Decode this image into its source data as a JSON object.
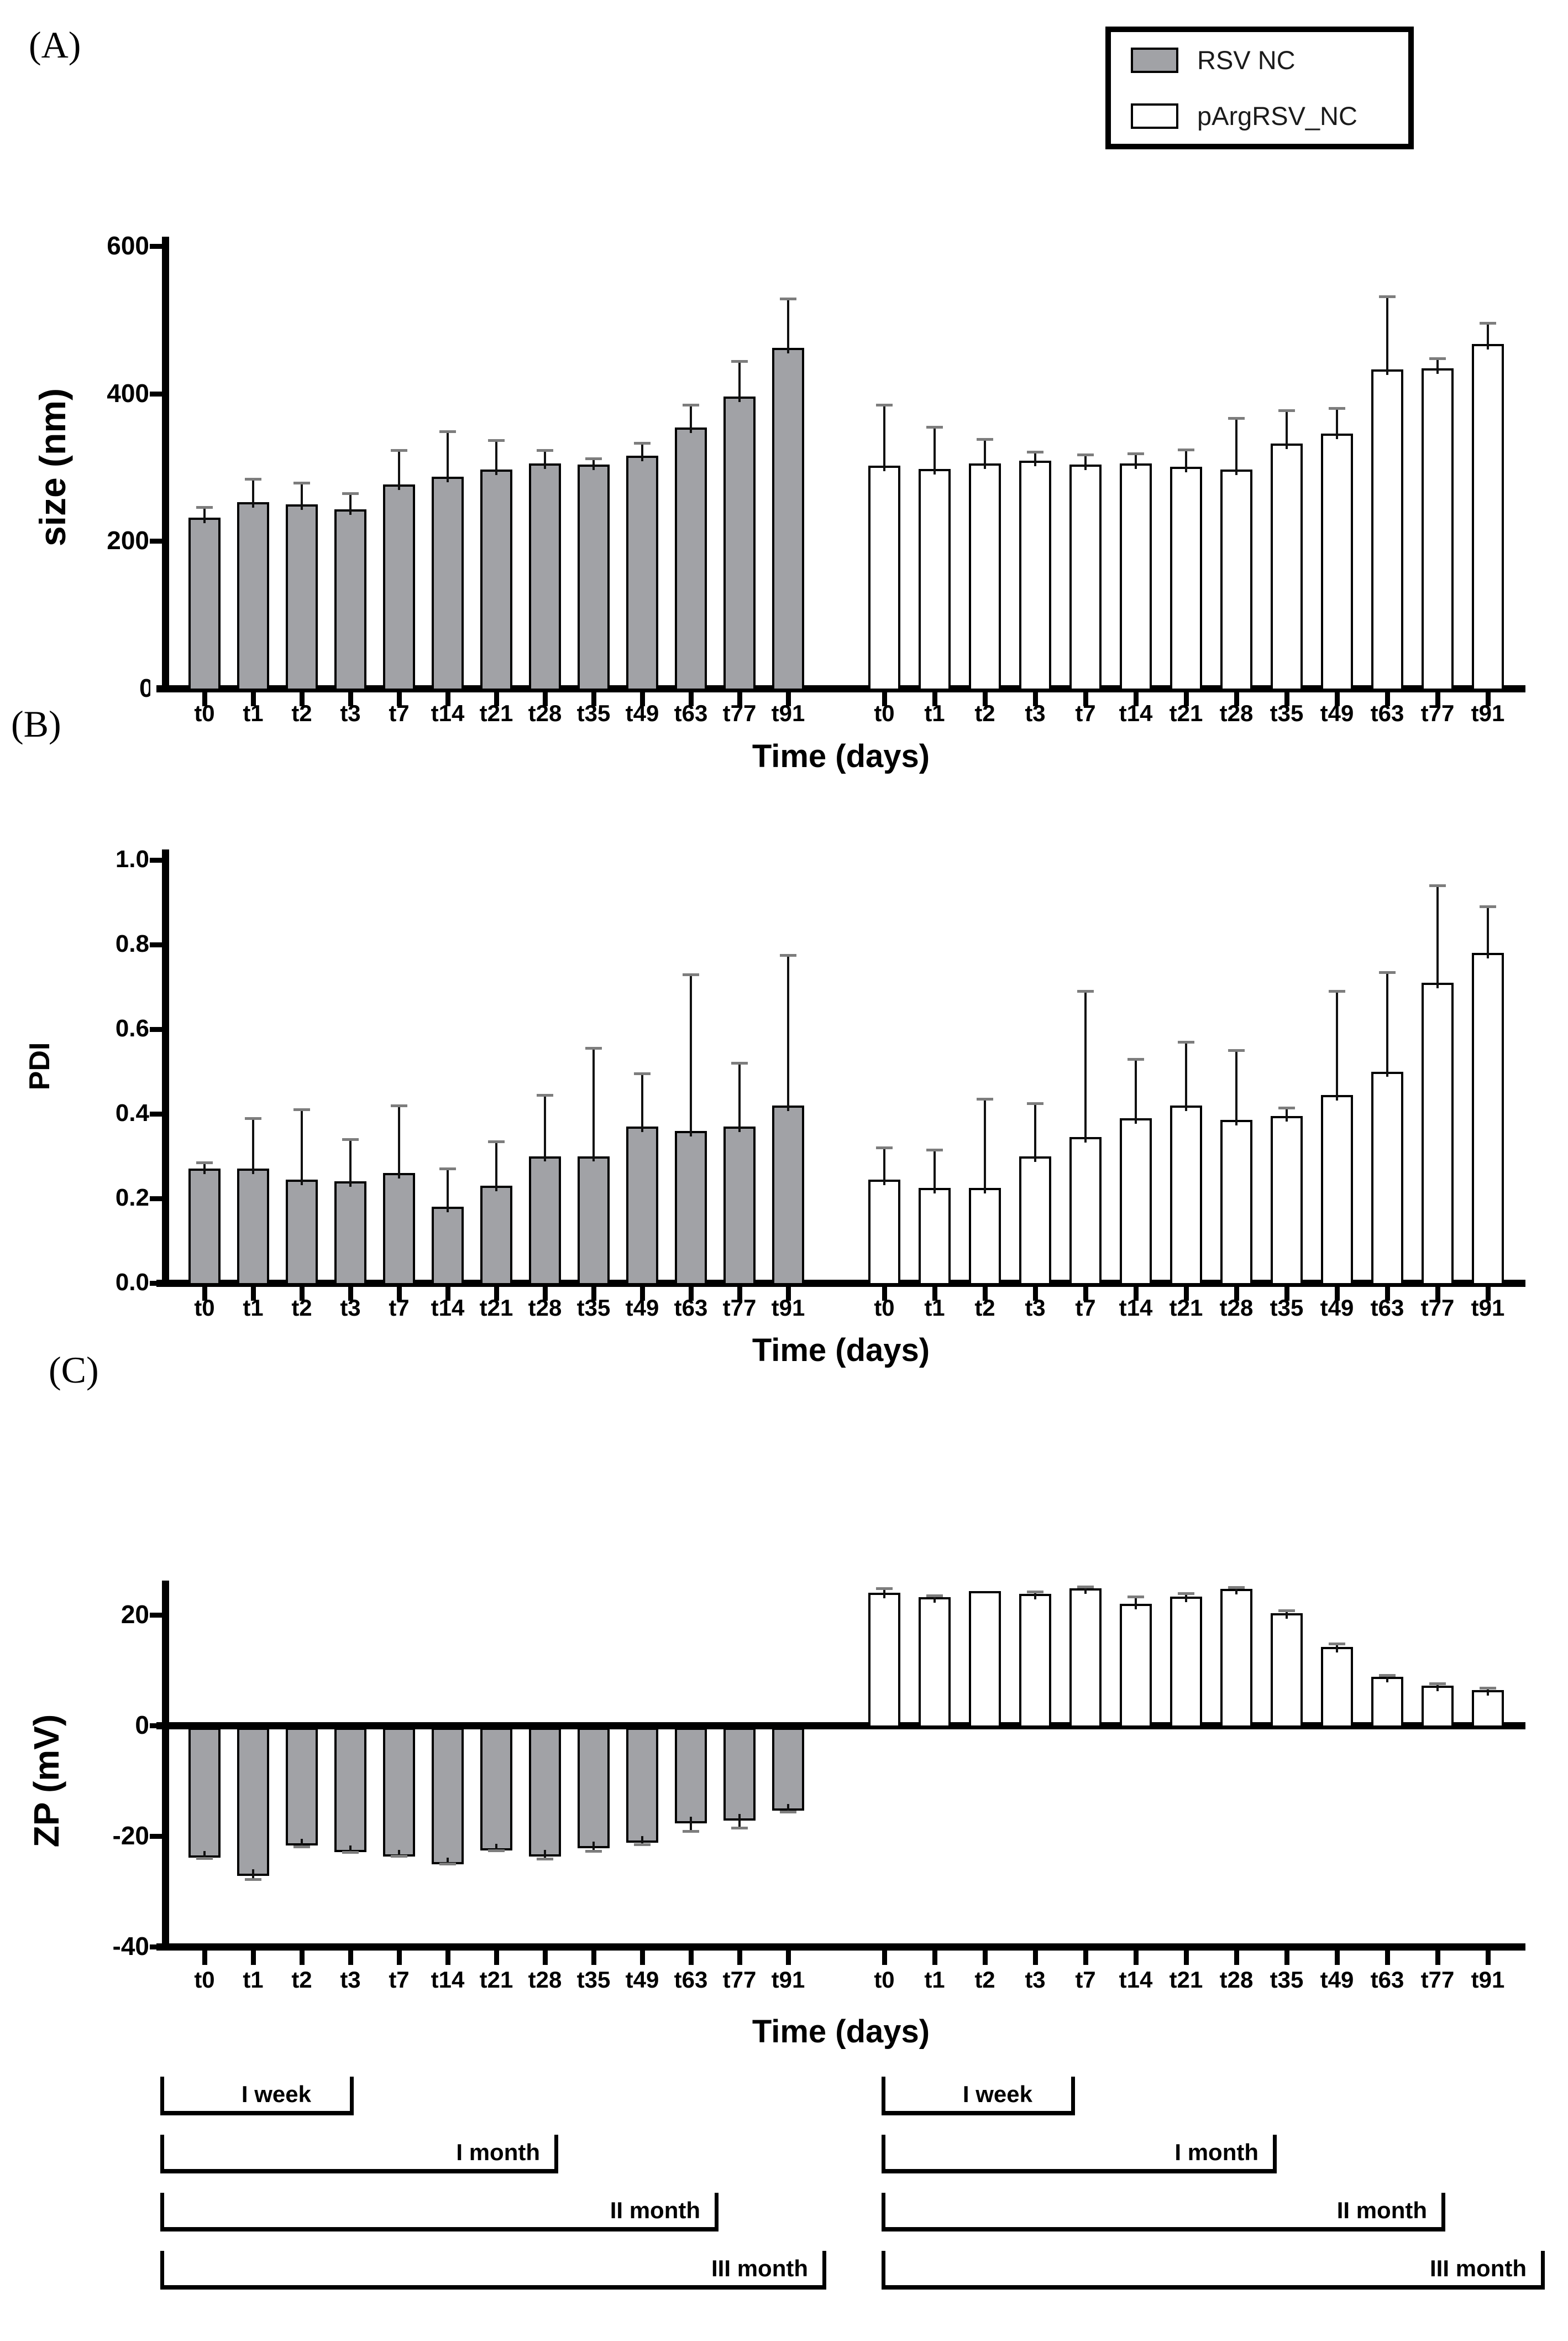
{
  "figure": {
    "panels": [
      {
        "id": "A",
        "label": "(A)"
      },
      {
        "id": "B",
        "label": "(B)"
      },
      {
        "id": "C",
        "label": "(C)"
      }
    ]
  },
  "legend": {
    "items": [
      {
        "label": "RSV NC",
        "fill": "#a1a2a6"
      },
      {
        "label": "pArgRSV_NC",
        "fill": "#ffffff"
      }
    ]
  },
  "colors": {
    "bar_gray": "#a1a2a6",
    "bar_white": "#ffffff",
    "axis": "#000000",
    "error_stem": "#111111",
    "error_cap": "#7d7d7d"
  },
  "brackets": {
    "labels": [
      "I week",
      "I month",
      "II month",
      "III month"
    ]
  },
  "chart_data": [
    {
      "type": "bar",
      "panel": "A",
      "title": "",
      "ylabel": "size (nm)",
      "xlabel": "Time (days)",
      "ylim": [
        0,
        600
      ],
      "ytick_values": [
        600,
        400,
        200,
        0
      ],
      "ytick_labels": [
        "600",
        "400",
        "200",
        "0"
      ],
      "grid": false,
      "legend_position": "top-right",
      "categories": [
        "t0",
        "t1",
        "t2",
        "t3",
        "t7",
        "t14",
        "t21",
        "t28",
        "t35",
        "t49",
        "t63",
        "t77",
        "t91"
      ],
      "series": [
        {
          "name": "RSV NC",
          "values": [
            232,
            253,
            250,
            243,
            277,
            287,
            297,
            305,
            304,
            316,
            354,
            396,
            462
          ],
          "errors": [
            14,
            31,
            29,
            22,
            46,
            62,
            40,
            18,
            8,
            17,
            31,
            48,
            67
          ]
        },
        {
          "name": "pArgRSV_NC",
          "values": [
            302,
            298,
            305,
            309,
            304,
            305,
            301,
            297,
            332,
            346,
            433,
            434,
            467
          ],
          "errors": [
            83,
            57,
            33,
            12,
            13,
            14,
            23,
            70,
            45,
            34,
            99,
            14,
            29
          ]
        }
      ]
    },
    {
      "type": "bar",
      "panel": "B",
      "title": "",
      "ylabel": "PDI",
      "xlabel": "Time (days)",
      "ylim": [
        0,
        1.0
      ],
      "ytick_values": [
        1.0,
        0.8,
        0.6,
        0.4,
        0.2,
        0.0
      ],
      "ytick_labels": [
        "1.0",
        "0.8",
        "0.6",
        "0.4",
        "0.2",
        "0.0"
      ],
      "grid": false,
      "categories": [
        "t0",
        "t1",
        "t2",
        "t3",
        "t7",
        "t14",
        "t21",
        "t28",
        "t35",
        "t49",
        "t63",
        "t77",
        "t91"
      ],
      "series": [
        {
          "name": "RSV NC",
          "values": [
            0.27,
            0.27,
            0.245,
            0.24,
            0.26,
            0.18,
            0.23,
            0.3,
            0.3,
            0.37,
            0.36,
            0.37,
            0.42
          ],
          "errors": [
            0.015,
            0.12,
            0.165,
            0.1,
            0.16,
            0.09,
            0.105,
            0.145,
            0.255,
            0.125,
            0.37,
            0.15,
            0.355
          ]
        },
        {
          "name": "pArgRSV_NC",
          "values": [
            0.245,
            0.225,
            0.225,
            0.3,
            0.345,
            0.39,
            0.42,
            0.385,
            0.395,
            0.445,
            0.5,
            0.71,
            0.78
          ],
          "errors": [
            0.075,
            0.09,
            0.21,
            0.125,
            0.345,
            0.14,
            0.15,
            0.165,
            0.02,
            0.245,
            0.235,
            0.23,
            0.11
          ]
        }
      ]
    },
    {
      "type": "bar",
      "panel": "C",
      "title": "",
      "ylabel": "ZP (mV)",
      "xlabel": "Time (days)",
      "ylim": [
        -40,
        30
      ],
      "ytick_values": [
        20,
        0,
        -20,
        -40
      ],
      "ytick_labels": [
        "20",
        "0",
        "-20",
        "-40"
      ],
      "grid": false,
      "categories": [
        "t0",
        "t1",
        "t2",
        "t3",
        "t7",
        "t14",
        "t21",
        "t28",
        "t35",
        "t49",
        "t63",
        "t77",
        "t91"
      ],
      "series": [
        {
          "name": "RSV NC",
          "values": [
            -23.5,
            -26.8,
            -21.3,
            -22.5,
            -23.3,
            -24.7,
            -22.2,
            -23.3,
            -21.8,
            -20.8,
            -17.3,
            -16.8,
            -15.0
          ],
          "errors": [
            0.5,
            1.0,
            0.6,
            0.4,
            0.3,
            0.3,
            0.4,
            0.8,
            0.9,
            0.7,
            1.8,
            1.7,
            0.6
          ]
        },
        {
          "name": "pArgRSV_NC",
          "values": [
            24.0,
            23.2,
            24.3,
            23.8,
            24.8,
            22.0,
            23.3,
            24.7,
            20.3,
            14.2,
            8.8,
            7.2,
            6.4
          ],
          "errors": [
            0.8,
            0.3,
            0.1,
            0.4,
            0.3,
            1.3,
            0.6,
            0.3,
            0.5,
            0.6,
            0.3,
            0.4,
            0.4
          ]
        }
      ]
    }
  ]
}
